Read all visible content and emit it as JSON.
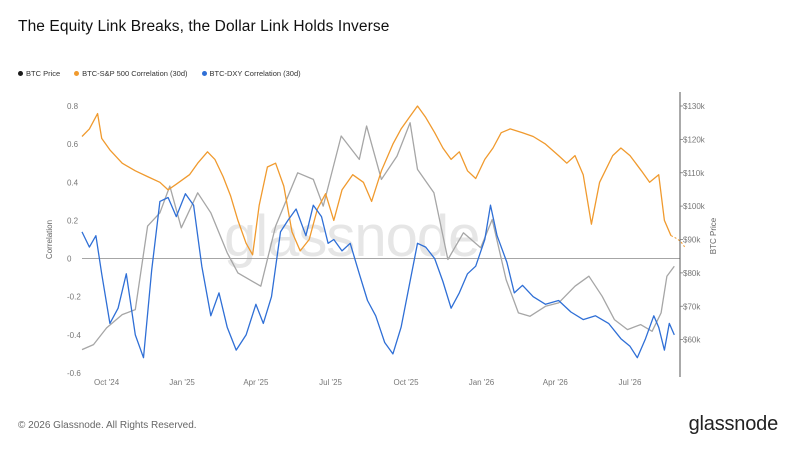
{
  "title": "The Equity Link Breaks, the Dollar Link Holds Inverse",
  "legend": [
    {
      "label": "BTC Price",
      "color": "#1a1a1a"
    },
    {
      "label": "BTC-S&P 500 Correlation (30d)",
      "color": "#f09a2e"
    },
    {
      "label": "BTC-DXY Correlation (30d)",
      "color": "#2f6fd6"
    }
  ],
  "footer": {
    "copyright": "© 2026 Glassnode. All Rights Reserved.",
    "brand": "glassnode"
  },
  "watermark": "glassnode",
  "chart_data": {
    "type": "line",
    "ylabel": "Correlation",
    "y2label": "BTC Price",
    "ylim": [
      -0.6,
      0.8
    ],
    "yticks": [
      "-0.6",
      "-0.4",
      "-0.2",
      "0",
      "0.2",
      "0.4",
      "0.6",
      "0.8"
    ],
    "y2lim": [
      50000,
      130000
    ],
    "y2ticks": [
      "$60k",
      "$70k",
      "$80k",
      "$90k",
      "$100k",
      "$110k",
      "$120k",
      "$130k"
    ],
    "xticks": [
      "Oct '24",
      "Jan '25",
      "Apr '25",
      "Jul '25",
      "Oct '25",
      "Jan '26",
      "Apr '26",
      "Jul '26"
    ],
    "xrange": [
      "2024-09-01",
      "2026-08-31"
    ],
    "series": [
      {
        "name": "BTC Price",
        "axis": "right",
        "color": "#a6a6a6",
        "points": [
          [
            "2024-09-01",
            57000
          ],
          [
            "2024-09-15",
            58500
          ],
          [
            "2024-10-01",
            63500
          ],
          [
            "2024-10-20",
            67500
          ],
          [
            "2024-11-05",
            69000
          ],
          [
            "2024-11-20",
            94000
          ],
          [
            "2024-12-05",
            98000
          ],
          [
            "2024-12-17",
            106000
          ],
          [
            "2024-12-31",
            93500
          ],
          [
            "2025-01-20",
            104000
          ],
          [
            "2025-02-05",
            98000
          ],
          [
            "2025-02-25",
            86000
          ],
          [
            "2025-03-10",
            80000
          ],
          [
            "2025-04-07",
            76000
          ],
          [
            "2025-04-25",
            94000
          ],
          [
            "2025-05-22",
            110000
          ],
          [
            "2025-06-10",
            108000
          ],
          [
            "2025-06-22",
            100000
          ],
          [
            "2025-07-14",
            121000
          ],
          [
            "2025-08-05",
            114000
          ],
          [
            "2025-08-14",
            124000
          ],
          [
            "2025-09-01",
            108000
          ],
          [
            "2025-09-20",
            115000
          ],
          [
            "2025-10-06",
            125000
          ],
          [
            "2025-10-15",
            111000
          ],
          [
            "2025-11-04",
            104000
          ],
          [
            "2025-11-21",
            84000
          ],
          [
            "2025-12-10",
            92000
          ],
          [
            "2025-12-31",
            87500
          ],
          [
            "2026-01-14",
            96000
          ],
          [
            "2026-01-31",
            78000
          ],
          [
            "2026-02-15",
            68000
          ],
          [
            "2026-03-01",
            67000
          ],
          [
            "2026-03-20",
            70000
          ],
          [
            "2026-04-05",
            71000
          ],
          [
            "2026-04-25",
            76000
          ],
          [
            "2026-05-12",
            79000
          ],
          [
            "2026-05-28",
            73000
          ],
          [
            "2026-06-12",
            66000
          ],
          [
            "2026-06-28",
            63000
          ],
          [
            "2026-07-14",
            64500
          ],
          [
            "2026-07-28",
            62500
          ],
          [
            "2026-08-08",
            68000
          ],
          [
            "2026-08-15",
            79000
          ],
          [
            "2026-08-24",
            82000
          ]
        ]
      },
      {
        "name": "BTC-S&P 500 Correlation (30d)",
        "axis": "left",
        "color": "#f09a2e",
        "points": [
          [
            "2024-09-01",
            0.64
          ],
          [
            "2024-09-10",
            0.68
          ],
          [
            "2024-09-20",
            0.76
          ],
          [
            "2024-09-25",
            0.63
          ],
          [
            "2024-10-05",
            0.57
          ],
          [
            "2024-10-20",
            0.5
          ],
          [
            "2024-11-05",
            0.46
          ],
          [
            "2024-11-20",
            0.43
          ],
          [
            "2024-12-05",
            0.4
          ],
          [
            "2024-12-15",
            0.36
          ],
          [
            "2024-12-25",
            0.39
          ],
          [
            "2025-01-10",
            0.44
          ],
          [
            "2025-01-20",
            0.5
          ],
          [
            "2025-02-01",
            0.56
          ],
          [
            "2025-02-10",
            0.52
          ],
          [
            "2025-02-20",
            0.43
          ],
          [
            "2025-03-01",
            0.33
          ],
          [
            "2025-03-10",
            0.2
          ],
          [
            "2025-03-20",
            0.08
          ],
          [
            "2025-03-28",
            0.02
          ],
          [
            "2025-04-05",
            0.28
          ],
          [
            "2025-04-15",
            0.48
          ],
          [
            "2025-04-25",
            0.5
          ],
          [
            "2025-05-05",
            0.38
          ],
          [
            "2025-05-15",
            0.14
          ],
          [
            "2025-05-25",
            0.04
          ],
          [
            "2025-06-05",
            0.1
          ],
          [
            "2025-06-15",
            0.26
          ],
          [
            "2025-06-25",
            0.34
          ],
          [
            "2025-07-05",
            0.2
          ],
          [
            "2025-07-15",
            0.36
          ],
          [
            "2025-07-28",
            0.44
          ],
          [
            "2025-08-10",
            0.4
          ],
          [
            "2025-08-20",
            0.3
          ],
          [
            "2025-09-01",
            0.46
          ],
          [
            "2025-09-15",
            0.6
          ],
          [
            "2025-09-25",
            0.68
          ],
          [
            "2025-10-05",
            0.74
          ],
          [
            "2025-10-15",
            0.8
          ],
          [
            "2025-10-25",
            0.74
          ],
          [
            "2025-11-05",
            0.66
          ],
          [
            "2025-11-15",
            0.58
          ],
          [
            "2025-11-25",
            0.52
          ],
          [
            "2025-12-05",
            0.56
          ],
          [
            "2025-12-15",
            0.46
          ],
          [
            "2025-12-25",
            0.42
          ],
          [
            "2026-01-05",
            0.52
          ],
          [
            "2026-01-15",
            0.58
          ],
          [
            "2026-01-25",
            0.66
          ],
          [
            "2026-02-05",
            0.68
          ],
          [
            "2026-02-20",
            0.66
          ],
          [
            "2026-03-05",
            0.64
          ],
          [
            "2026-03-20",
            0.6
          ],
          [
            "2026-04-05",
            0.54
          ],
          [
            "2026-04-15",
            0.5
          ],
          [
            "2026-04-25",
            0.54
          ],
          [
            "2026-05-05",
            0.44
          ],
          [
            "2026-05-15",
            0.18
          ],
          [
            "2026-05-25",
            0.4
          ],
          [
            "2026-06-10",
            0.54
          ],
          [
            "2026-06-20",
            0.58
          ],
          [
            "2026-07-01",
            0.54
          ],
          [
            "2026-07-15",
            0.46
          ],
          [
            "2026-07-25",
            0.4
          ],
          [
            "2026-08-05",
            0.44
          ],
          [
            "2026-08-12",
            0.2
          ],
          [
            "2026-08-20",
            0.12
          ]
        ]
      },
      {
        "name": "BTC-DXY Correlation (30d)",
        "axis": "left",
        "color": "#2f6fd6",
        "points": [
          [
            "2024-09-01",
            0.14
          ],
          [
            "2024-09-10",
            0.06
          ],
          [
            "2024-09-18",
            0.12
          ],
          [
            "2024-09-25",
            -0.08
          ],
          [
            "2024-10-05",
            -0.34
          ],
          [
            "2024-10-15",
            -0.26
          ],
          [
            "2024-10-25",
            -0.08
          ],
          [
            "2024-11-05",
            -0.4
          ],
          [
            "2024-11-15",
            -0.52
          ],
          [
            "2024-11-25",
            -0.06
          ],
          [
            "2024-12-05",
            0.3
          ],
          [
            "2024-12-15",
            0.32
          ],
          [
            "2024-12-25",
            0.22
          ],
          [
            "2025-01-05",
            0.34
          ],
          [
            "2025-01-15",
            0.28
          ],
          [
            "2025-01-25",
            -0.04
          ],
          [
            "2025-02-05",
            -0.3
          ],
          [
            "2025-02-15",
            -0.18
          ],
          [
            "2025-02-25",
            -0.36
          ],
          [
            "2025-03-08",
            -0.48
          ],
          [
            "2025-03-20",
            -0.4
          ],
          [
            "2025-04-01",
            -0.24
          ],
          [
            "2025-04-10",
            -0.34
          ],
          [
            "2025-04-20",
            -0.2
          ],
          [
            "2025-05-01",
            0.14
          ],
          [
            "2025-05-10",
            0.2
          ],
          [
            "2025-05-20",
            0.26
          ],
          [
            "2025-06-01",
            0.12
          ],
          [
            "2025-06-10",
            0.28
          ],
          [
            "2025-06-20",
            0.22
          ],
          [
            "2025-06-28",
            0.08
          ],
          [
            "2025-07-05",
            0.1
          ],
          [
            "2025-07-15",
            0.04
          ],
          [
            "2025-07-25",
            0.08
          ],
          [
            "2025-08-05",
            -0.08
          ],
          [
            "2025-08-15",
            -0.22
          ],
          [
            "2025-08-25",
            -0.3
          ],
          [
            "2025-09-05",
            -0.44
          ],
          [
            "2025-09-15",
            -0.5
          ],
          [
            "2025-09-25",
            -0.36
          ],
          [
            "2025-10-05",
            -0.14
          ],
          [
            "2025-10-15",
            0.08
          ],
          [
            "2025-10-25",
            0.06
          ],
          [
            "2025-11-05",
            0.0
          ],
          [
            "2025-11-15",
            -0.12
          ],
          [
            "2025-11-25",
            -0.26
          ],
          [
            "2025-12-05",
            -0.18
          ],
          [
            "2025-12-15",
            -0.08
          ],
          [
            "2025-12-25",
            -0.04
          ],
          [
            "2026-01-05",
            0.1
          ],
          [
            "2026-01-12",
            0.28
          ],
          [
            "2026-01-20",
            0.12
          ],
          [
            "2026-02-01",
            -0.02
          ],
          [
            "2026-02-10",
            -0.18
          ],
          [
            "2026-02-20",
            -0.14
          ],
          [
            "2026-03-05",
            -0.2
          ],
          [
            "2026-03-20",
            -0.24
          ],
          [
            "2026-04-05",
            -0.22
          ],
          [
            "2026-04-20",
            -0.28
          ],
          [
            "2026-05-05",
            -0.32
          ],
          [
            "2026-05-20",
            -0.3
          ],
          [
            "2026-06-05",
            -0.34
          ],
          [
            "2026-06-20",
            -0.42
          ],
          [
            "2026-07-01",
            -0.46
          ],
          [
            "2026-07-10",
            -0.52
          ],
          [
            "2026-07-20",
            -0.42
          ],
          [
            "2026-07-30",
            -0.3
          ],
          [
            "2026-08-05",
            -0.36
          ],
          [
            "2026-08-12",
            -0.48
          ],
          [
            "2026-08-18",
            -0.34
          ],
          [
            "2026-08-24",
            -0.4
          ]
        ]
      }
    ]
  }
}
